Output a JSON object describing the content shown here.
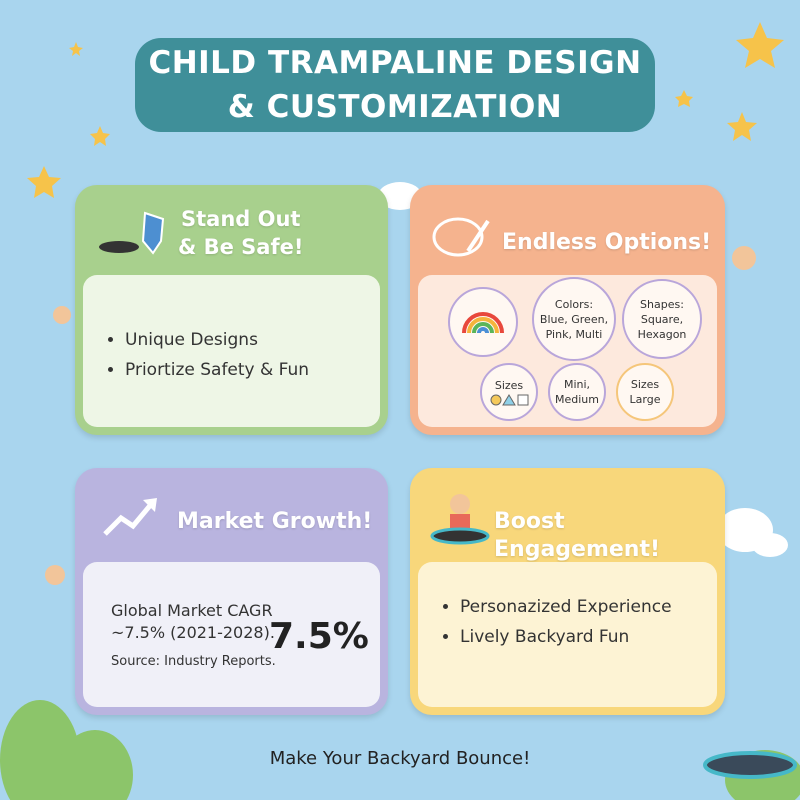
{
  "header": {
    "title_lines": [
      "CHILD TRAMPALINE DESIGN",
      "& CUSTOMIZATION"
    ]
  },
  "cards": [
    {
      "heading_lines": [
        "Stand Out",
        "& Be Safe!"
      ],
      "bullets": [
        "Unique Designs",
        "Priortize Safety & Fun"
      ]
    },
    {
      "heading_lines": [
        "Endless Options!"
      ],
      "options": [
        {
          "lines": [
            "Colors:",
            "Blue, Green,",
            "Pink, Multi"
          ]
        },
        {
          "lines": [
            "Shapes:",
            "Square,",
            "Hexagon"
          ]
        },
        {
          "lines": [
            "Sizes"
          ]
        },
        {
          "lines": [
            "Mini,",
            "Medium"
          ]
        },
        {
          "lines": [
            "Sizes",
            "Large"
          ]
        }
      ]
    },
    {
      "heading_lines": [
        "Market Growth!"
      ],
      "text_lines": [
        "Global Market CAGR",
        "~7.5% (2021-2028)."
      ],
      "highlight": "7.5%",
      "source": "Source: Industry Reports."
    },
    {
      "heading_lines": [
        "Boost Engagement!"
      ],
      "bullets": [
        "Personazized Experience",
        "Lively Backyard Fun"
      ]
    }
  ],
  "footer": {
    "tagline": "Make Your Backyard Bounce!"
  }
}
